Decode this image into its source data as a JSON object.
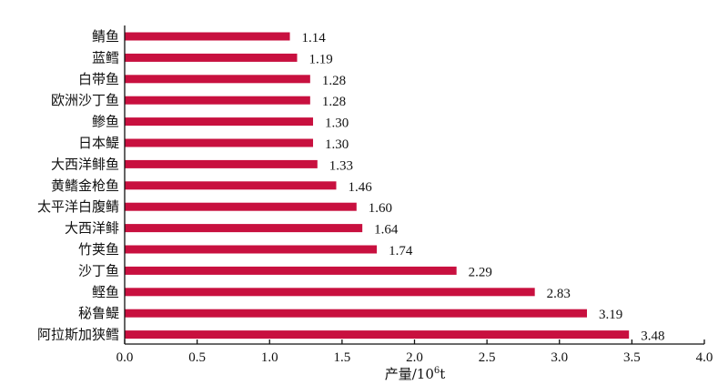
{
  "chart_data": {
    "type": "bar",
    "orientation": "horizontal",
    "categories": [
      "鲭鱼",
      "蓝鳕",
      "白带鱼",
      "欧洲沙丁鱼",
      "鲹鱼",
      "日本鳀",
      "大西洋鲱鱼",
      "黄鳍金枪鱼",
      "太平洋白腹鲭",
      "大西洋鲱",
      "竹荚鱼",
      "沙丁鱼",
      "鲣鱼",
      "秘鲁鳀",
      "阿拉斯加狭鳕"
    ],
    "values": [
      1.14,
      1.19,
      1.28,
      1.28,
      1.3,
      1.3,
      1.33,
      1.46,
      1.6,
      1.64,
      1.74,
      2.29,
      2.83,
      3.19,
      3.48
    ],
    "value_labels": [
      "1.14",
      "1.19",
      "1.28",
      "1.28",
      "1.30",
      "1.30",
      "1.33",
      "1.46",
      "1.60",
      "1.64",
      "1.74",
      "2.29",
      "2.83",
      "3.19",
      "3.48"
    ],
    "xlabel_main": "产量/10",
    "xlabel_sup": "6",
    "xlabel_unit": "t",
    "xlim": [
      0,
      4.0
    ],
    "xticks": [
      "0.0",
      "0.5",
      "1.0",
      "1.5",
      "2.0",
      "2.5",
      "3.0",
      "3.5",
      "4.0"
    ],
    "bar_color": "#c8103f",
    "grid": false
  }
}
